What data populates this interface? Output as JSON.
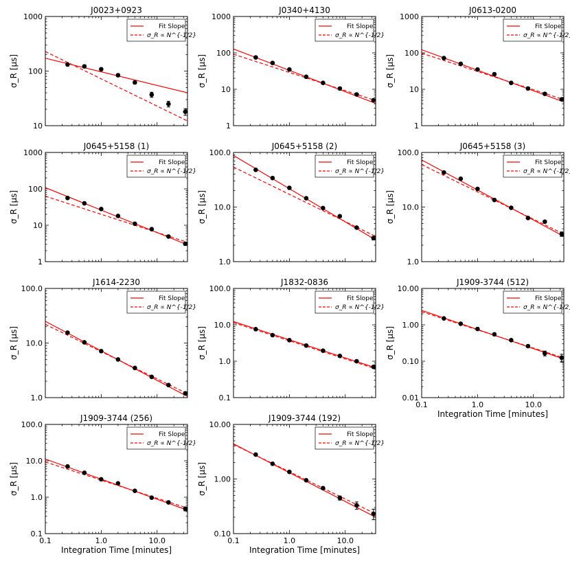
{
  "chart_data": [
    {
      "type": "scatter",
      "title": "J0023+0923",
      "ylabel": "σ_R [μs]",
      "xlabel": "",
      "xlim": [
        0.1,
        35
      ],
      "ylim": [
        10,
        1000
      ],
      "yticks": [
        "10",
        "100",
        "1000"
      ],
      "xticks": [],
      "series": [
        {
          "name": "data",
          "x": [
            0.25,
            0.5,
            1,
            2,
            4,
            8,
            16,
            32
          ],
          "y": [
            132,
            122,
            108,
            84,
            62,
            37,
            25,
            18
          ],
          "err": [
            8,
            7,
            6,
            5,
            4,
            4,
            3,
            2.5
          ]
        }
      ],
      "fit_line": {
        "x": [
          0.1,
          35
        ],
        "y": [
          172,
          40
        ]
      },
      "ref_line": {
        "x": [
          0.1,
          35
        ],
        "y": [
          228,
          12.2
        ]
      }
    },
    {
      "type": "scatter",
      "title": "J0340+4130",
      "ylabel": "σ_R [μs]",
      "xlabel": "",
      "xlim": [
        0.1,
        35
      ],
      "ylim": [
        1,
        1000
      ],
      "yticks": [
        "1",
        "10",
        "100",
        "1000"
      ],
      "xticks": [],
      "series": [
        {
          "name": "data",
          "x": [
            0.25,
            0.5,
            1,
            2,
            4,
            8,
            16,
            32
          ],
          "y": [
            75,
            53,
            35,
            22,
            15,
            10.5,
            7.2,
            5.0
          ],
          "err": [
            3,
            2,
            1.5,
            1,
            0.7,
            0.5,
            0.4,
            0.3
          ]
        }
      ],
      "fit_line": {
        "x": [
          0.1,
          35
        ],
        "y": [
          128,
          4.1
        ]
      },
      "ref_line": {
        "x": [
          0.1,
          35
        ],
        "y": [
          92,
          4.9
        ]
      }
    },
    {
      "type": "scatter",
      "title": "J0613-0200",
      "ylabel": "σ_R [μs]",
      "xlabel": "",
      "xlim": [
        0.1,
        35
      ],
      "ylim": [
        1,
        1000
      ],
      "yticks": [
        "1",
        "10",
        "100",
        "1000"
      ],
      "xticks": [],
      "series": [
        {
          "name": "data",
          "x": [
            0.25,
            0.5,
            1,
            2,
            4,
            8,
            16,
            32
          ],
          "y": [
            72,
            50,
            35,
            26,
            15,
            10.5,
            7.5,
            5.3
          ],
          "err": [
            3,
            2,
            1.5,
            1.2,
            0.7,
            0.5,
            0.4,
            0.3
          ]
        }
      ],
      "fit_line": {
        "x": [
          0.1,
          35
        ],
        "y": [
          122,
          4.5
        ]
      },
      "ref_line": {
        "x": [
          0.1,
          35
        ],
        "y": [
          98,
          5.2
        ]
      }
    },
    {
      "type": "scatter",
      "title": "J0645+5158 (1)",
      "ylabel": "σ_R [μs]",
      "xlabel": "",
      "xlim": [
        0.1,
        35
      ],
      "ylim": [
        1,
        1000
      ],
      "yticks": [
        "1",
        "10",
        "100",
        "1000"
      ],
      "xticks": [],
      "series": [
        {
          "name": "data",
          "x": [
            0.25,
            0.5,
            1,
            2,
            4,
            8,
            16,
            32
          ],
          "y": [
            56,
            40,
            28,
            18,
            11,
            7.8,
            4.9,
            3.1
          ],
          "err": [
            2,
            1.5,
            1.2,
            0.8,
            0.5,
            0.4,
            0.3,
            0.3
          ]
        }
      ],
      "fit_line": {
        "x": [
          0.1,
          35
        ],
        "y": [
          108,
          2.9
        ]
      },
      "ref_line": {
        "x": [
          0.1,
          35
        ],
        "y": [
          63,
          3.4
        ]
      }
    },
    {
      "type": "scatter",
      "title": "J0645+5158 (2)",
      "ylabel": "σ_R [μs]",
      "xlabel": "",
      "xlim": [
        0.1,
        35
      ],
      "ylim": [
        1,
        100
      ],
      "yticks": [
        "1.0",
        "10.0",
        "100.0"
      ],
      "xticks": [],
      "series": [
        {
          "name": "data",
          "x": [
            0.25,
            0.5,
            1,
            2,
            4,
            8,
            16,
            32
          ],
          "y": [
            48,
            34,
            22.5,
            14.5,
            9.6,
            6.8,
            4.2,
            2.7
          ],
          "err": [
            1.5,
            1.2,
            0.9,
            0.6,
            0.4,
            0.3,
            0.2,
            0.2
          ]
        }
      ],
      "fit_line": {
        "x": [
          0.1,
          35
        ],
        "y": [
          88,
          2.5
        ]
      },
      "ref_line": {
        "x": [
          0.1,
          35
        ],
        "y": [
          54,
          2.9
        ]
      }
    },
    {
      "type": "scatter",
      "title": "J0645+5158 (3)",
      "ylabel": "σ_R [μs]",
      "xlabel": "",
      "xlim": [
        0.1,
        35
      ],
      "ylim": [
        1,
        100
      ],
      "yticks": [
        "1.0",
        "10.0",
        "100.0"
      ],
      "xticks": [],
      "series": [
        {
          "name": "data",
          "x": [
            0.25,
            0.5,
            1,
            2,
            4,
            8,
            16,
            32
          ],
          "y": [
            43,
            33,
            21.5,
            13.5,
            9.7,
            6.3,
            5.4,
            3.2
          ],
          "err": [
            1.5,
            1.2,
            0.9,
            0.6,
            0.4,
            0.3,
            0.3,
            0.3
          ]
        }
      ],
      "fit_line": {
        "x": [
          0.1,
          35
        ],
        "y": [
          73,
          2.9
        ]
      },
      "ref_line": {
        "x": [
          0.1,
          35
        ],
        "y": [
          60,
          3.2
        ]
      }
    },
    {
      "type": "scatter",
      "title": "J1614-2230",
      "ylabel": "σ_R [μs]",
      "xlabel": "",
      "xlim": [
        0.1,
        35
      ],
      "ylim": [
        1,
        100
      ],
      "yticks": [
        "1.0",
        "10.0",
        "100.0"
      ],
      "xticks": [],
      "series": [
        {
          "name": "data",
          "x": [
            0.25,
            0.5,
            1,
            2,
            4,
            8,
            16,
            32
          ],
          "y": [
            15.5,
            10.3,
            7.1,
            5.0,
            3.5,
            2.4,
            1.7,
            1.2
          ],
          "err": [
            0.6,
            0.4,
            0.3,
            0.2,
            0.15,
            0.1,
            0.1,
            0.08
          ]
        }
      ],
      "fit_line": {
        "x": [
          0.1,
          35
        ],
        "y": [
          25,
          1.05
        ]
      },
      "ref_line": {
        "x": [
          0.1,
          35
        ],
        "y": [
          22,
          1.18
        ]
      }
    },
    {
      "type": "scatter",
      "title": "J1832-0836",
      "ylabel": "σ_R [μs]",
      "xlabel": "",
      "xlim": [
        0.1,
        35
      ],
      "ylim": [
        0.1,
        100
      ],
      "yticks": [
        "0.1",
        "1.0",
        "10.0",
        "100.0"
      ],
      "xticks": [],
      "series": [
        {
          "name": "data",
          "x": [
            0.25,
            0.5,
            1,
            2,
            4,
            8,
            16,
            32
          ],
          "y": [
            7.6,
            5.2,
            3.8,
            2.7,
            1.95,
            1.4,
            1.0,
            0.7
          ],
          "err": [
            0.3,
            0.2,
            0.15,
            0.1,
            0.07,
            0.05,
            0.04,
            0.04
          ]
        }
      ],
      "fit_line": {
        "x": [
          0.1,
          35
        ],
        "y": [
          12.3,
          0.66
        ]
      },
      "ref_line": {
        "x": [
          0.1,
          35
        ],
        "y": [
          11.5,
          0.62
        ]
      }
    },
    {
      "type": "scatter",
      "title": "J1909-3744 (512)",
      "ylabel": "σ_R [μs]",
      "xlabel": "Integration Time [minutes]",
      "xlim": [
        0.1,
        35
      ],
      "ylim": [
        0.01,
        10
      ],
      "yticks": [
        "0.01",
        "0.10",
        "1.00",
        "10.00"
      ],
      "xticks": [
        "0.1",
        "1.0",
        "10.0"
      ],
      "series": [
        {
          "name": "data",
          "x": [
            0.25,
            0.5,
            1,
            2,
            4,
            8,
            16,
            32
          ],
          "y": [
            1.5,
            1.07,
            0.77,
            0.55,
            0.38,
            0.26,
            0.165,
            0.125
          ],
          "err": [
            0.06,
            0.04,
            0.03,
            0.02,
            0.015,
            0.02,
            0.025,
            0.03
          ]
        }
      ],
      "fit_line": {
        "x": [
          0.1,
          35
        ],
        "y": [
          2.5,
          0.115
        ]
      },
      "ref_line": {
        "x": [
          0.1,
          35
        ],
        "y": [
          2.3,
          0.123
        ]
      }
    },
    {
      "type": "scatter",
      "title": "J1909-3744 (256)",
      "ylabel": "σ_R [μs]",
      "xlabel": "Integration Time [minutes]",
      "xlim": [
        0.1,
        35
      ],
      "ylim": [
        0.1,
        100
      ],
      "yticks": [
        "0.1",
        "1.0",
        "10.0",
        "100.0"
      ],
      "xticks": [
        "0.1",
        "1.0",
        "10.0"
      ],
      "series": [
        {
          "name": "data",
          "x": [
            0.25,
            0.5,
            1,
            2,
            4,
            8,
            16,
            32
          ],
          "y": [
            7.0,
            4.7,
            3.1,
            2.4,
            1.5,
            0.97,
            0.72,
            0.48
          ],
          "err": [
            0.3,
            0.2,
            0.12,
            0.1,
            0.07,
            0.05,
            0.05,
            0.06
          ]
        }
      ],
      "fit_line": {
        "x": [
          0.1,
          35
        ],
        "y": [
          11.2,
          0.44
        ]
      },
      "ref_line": {
        "x": [
          0.1,
          35
        ],
        "y": [
          9.3,
          0.5
        ]
      }
    },
    {
      "type": "scatter",
      "title": "J1909-3744 (192)",
      "ylabel": "σ_R [μs]",
      "xlabel": "Integration Time [minutes]",
      "xlim": [
        0.1,
        35
      ],
      "ylim": [
        0.1,
        10
      ],
      "yticks": [
        "0.10",
        "1.00",
        "10.00"
      ],
      "xticks": [
        "0.1",
        "1.0",
        "10.0"
      ],
      "series": [
        {
          "name": "data",
          "x": [
            0.25,
            0.5,
            1,
            2,
            4,
            8,
            16,
            32
          ],
          "y": [
            2.8,
            1.9,
            1.35,
            0.95,
            0.68,
            0.45,
            0.33,
            0.23
          ],
          "err": [
            0.1,
            0.07,
            0.05,
            0.04,
            0.04,
            0.04,
            0.05,
            0.05
          ]
        }
      ],
      "fit_line": {
        "x": [
          0.1,
          35
        ],
        "y": [
          4.4,
          0.2
        ]
      },
      "ref_line": {
        "x": [
          0.1,
          35
        ],
        "y": [
          4.3,
          0.23
        ]
      }
    }
  ],
  "legend": {
    "fit": "Fit Slope",
    "ref": "σ_R ∝ N^{-1/2}"
  },
  "colors": {
    "line": "#ff0000",
    "marker": "#000000",
    "axes": "#000000"
  }
}
